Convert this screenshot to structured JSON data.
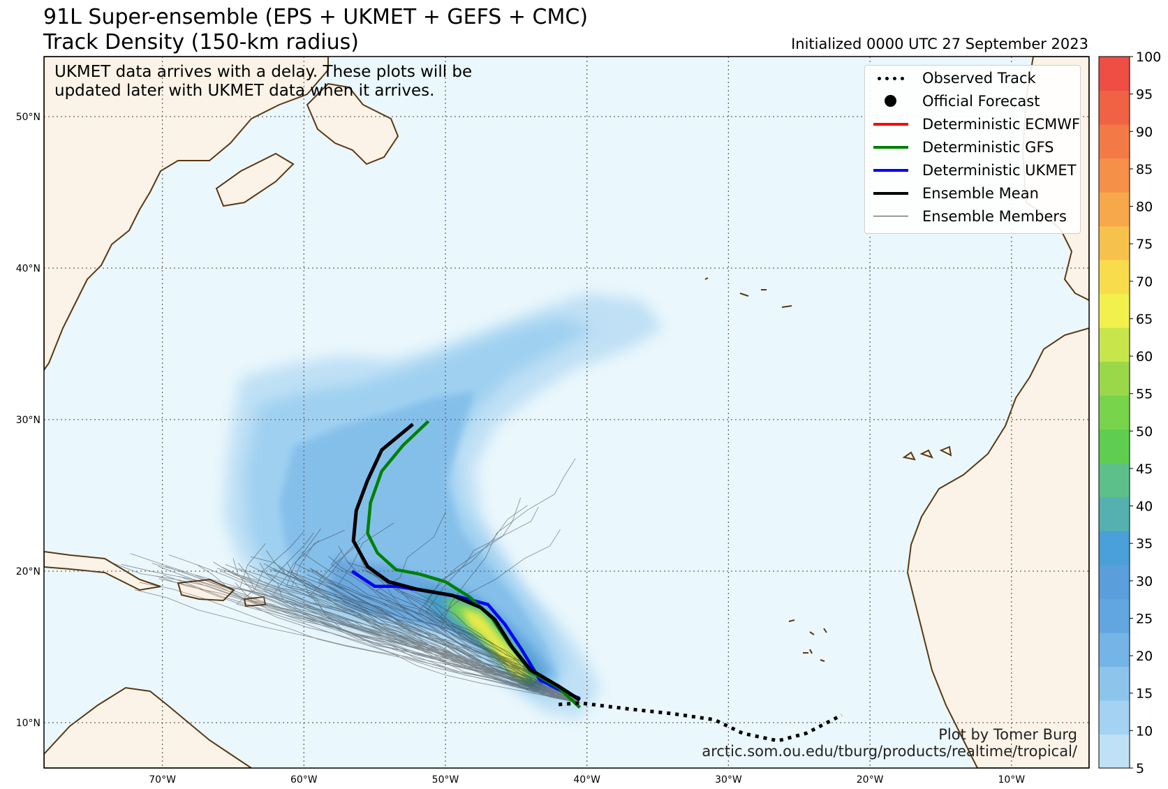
{
  "title_line1": "91L Super-ensemble (EPS + UKMET + GEFS + CMC)",
  "title_line2": "Track Density (150-km radius)",
  "initialized": "Initialized 0000 UTC 27 September 2023",
  "notice_line1": "UKMET data arrives with a delay. These plots will be",
  "notice_line2": "updated later with UKMET data when it arrives.",
  "legend": [
    {
      "label": "Observed Track",
      "symbol": "dotted-line",
      "color": "#000000"
    },
    {
      "label": "Official Forecast",
      "symbol": "dot",
      "color": "#000000"
    },
    {
      "label": "Deterministic ECMWF",
      "symbol": "line",
      "color": "#ff0000"
    },
    {
      "label": "Deterministic GFS",
      "symbol": "line",
      "color": "#008000"
    },
    {
      "label": "Deterministic UKMET",
      "symbol": "line",
      "color": "#0000ff"
    },
    {
      "label": "Ensemble Mean",
      "symbol": "line",
      "color": "#000000"
    },
    {
      "label": "Ensemble Members",
      "symbol": "thin-line",
      "color": "#444444"
    }
  ],
  "credit_line1": "Plot by Tomer Burg",
  "credit_line2": "arctic.som.ou.edu/tburg/products/realtime/tropical/",
  "lat_labels": [
    "50°N",
    "40°N",
    "30°N",
    "20°N",
    "10°N"
  ],
  "lon_labels": [
    "70°W",
    "60°W",
    "50°W",
    "40°W",
    "30°W",
    "20°W",
    "10°W"
  ],
  "colorbar": {
    "ticks": [
      "5",
      "10",
      "15",
      "20",
      "25",
      "30",
      "35",
      "40",
      "45",
      "50",
      "55",
      "60",
      "65",
      "70",
      "75",
      "80",
      "85",
      "90",
      "95",
      "100"
    ],
    "colors": [
      "#bfe0f5",
      "#a3d2f2",
      "#8cc4ec",
      "#74b4e6",
      "#62a6e0",
      "#5a9edb",
      "#4aa0d8",
      "#55b0b0",
      "#5cc08a",
      "#5fce50",
      "#78d44a",
      "#9ad84a",
      "#c8e64c",
      "#f2f04c",
      "#f8dc4c",
      "#f7c24c",
      "#f6a84a",
      "#f59048",
      "#f37a46",
      "#f06244",
      "#ee4e44"
    ]
  },
  "map_colors": {
    "ocean": "#eaf7fc",
    "land": "#fbf3e7",
    "coast": "#5a3812",
    "grid": "#666666"
  },
  "tracks": {
    "observed": {
      "lon": [
        -42,
        -40.5,
        -37,
        -34,
        -31,
        -29,
        -26.5,
        -24.5,
        -22
      ],
      "lat": [
        11.2,
        11.3,
        10.9,
        10.6,
        10.2,
        9.3,
        8.8,
        9.3,
        10.5
      ]
    },
    "mean": {
      "lon": [
        -40.5,
        -42,
        -44,
        -45.3,
        -46.5,
        -47.5,
        -49.5,
        -52,
        -54,
        -55.5,
        -56.5,
        -56.3,
        -55.5,
        -54.5,
        -52.3
      ],
      "lat": [
        11.5,
        12.4,
        13.5,
        15.0,
        16.8,
        17.6,
        18.4,
        18.8,
        19.3,
        20.3,
        22.0,
        24.0,
        26.0,
        28.0,
        29.7
      ]
    },
    "gfs": {
      "lon": [
        -40.5,
        -42,
        -44,
        -45.5,
        -46.7,
        -48.3,
        -50,
        -51.8,
        -53.5,
        -54.8,
        -55.5,
        -55.3,
        -54.5,
        -53,
        -51.2
      ],
      "lat": [
        11.0,
        12.3,
        13.4,
        15.2,
        16.9,
        18.3,
        19.3,
        19.8,
        20.1,
        21.2,
        22.5,
        24.5,
        26.6,
        28.3,
        29.9
      ]
    },
    "ukmet": {
      "lon": [
        -40.5,
        -41.8,
        -43.3,
        -44.6,
        -45.8,
        -47,
        -49,
        -51.5,
        -53.5,
        -55,
        -56.6
      ],
      "lat": [
        11.6,
        12.1,
        12.8,
        14.8,
        16.5,
        17.8,
        18.3,
        18.7,
        19.0,
        19.0,
        20.0
      ]
    }
  }
}
